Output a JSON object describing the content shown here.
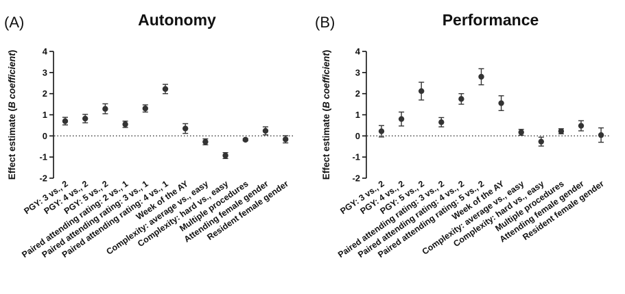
{
  "chart_data": [
    {
      "type": "scatter",
      "panel_label": "(A)",
      "title": "Autonomy",
      "ylabel_parts": [
        "Effect estimate (",
        "B",
        " coefficient",
        ")"
      ],
      "ylim": [
        -2,
        4
      ],
      "yticks": [
        "-2",
        "-1",
        "0",
        "1",
        "2",
        "3",
        "4"
      ],
      "reference_line": 0,
      "categories": [
        "PGY: 3 vs., 2",
        "PGY: 4 vs., 2",
        "PGY: 5 vs., 2",
        "Paired attending rating: 2 vs., 1",
        "Paired attending rating: 3 vs., 1",
        "Paired attending rating: 4 vs., 1",
        "Week of the AY",
        "Complexity: average vs., easy",
        "Complexity: hard vs., easy",
        "Multiple procedures",
        "Attending female gender",
        "Resident female gender"
      ],
      "values": [
        0.7,
        0.82,
        1.28,
        0.55,
        1.3,
        2.22,
        0.35,
        -0.28,
        -0.93,
        -0.18,
        0.24,
        -0.16
      ],
      "ci_low": [
        0.52,
        0.62,
        1.05,
        0.4,
        1.13,
        2.0,
        0.12,
        -0.42,
        -1.07,
        -0.23,
        0.05,
        -0.33
      ],
      "ci_high": [
        0.88,
        1.02,
        1.52,
        0.7,
        1.47,
        2.44,
        0.58,
        -0.14,
        -0.79,
        -0.13,
        0.43,
        0.01
      ]
    },
    {
      "type": "scatter",
      "panel_label": "(B)",
      "title": "Performance",
      "ylabel_parts": [
        "Effect estimate (",
        "B",
        " coefficient",
        ")"
      ],
      "ylim": [
        -2,
        4
      ],
      "yticks": [
        "-2",
        "-1",
        "0",
        "1",
        "2",
        "3",
        "4"
      ],
      "reference_line": 0,
      "categories": [
        "PGY: 3 vs., 2",
        "PGY: 4 vs., 2",
        "PGY: 5 vs., 2",
        "Paired attending rating: 3 vs., 2",
        "Paired attending rating: 4 vs., 2",
        "Paired attending rating: 5 vs., 2",
        "Week of the AY",
        "Complexity: average vs., easy",
        "Complexity: hard vs., easy",
        "Multiple procedures",
        "Attending female gender",
        "Resident female gender"
      ],
      "values": [
        0.22,
        0.8,
        2.12,
        0.65,
        1.75,
        2.8,
        1.55,
        0.17,
        -0.27,
        0.22,
        0.48,
        0.04
      ],
      "ci_low": [
        -0.05,
        0.47,
        1.7,
        0.43,
        1.5,
        2.42,
        1.2,
        0.03,
        -0.48,
        0.1,
        0.24,
        -0.3
      ],
      "ci_high": [
        0.49,
        1.13,
        2.54,
        0.87,
        2.0,
        3.18,
        1.9,
        0.31,
        -0.06,
        0.34,
        0.72,
        0.38
      ]
    }
  ]
}
